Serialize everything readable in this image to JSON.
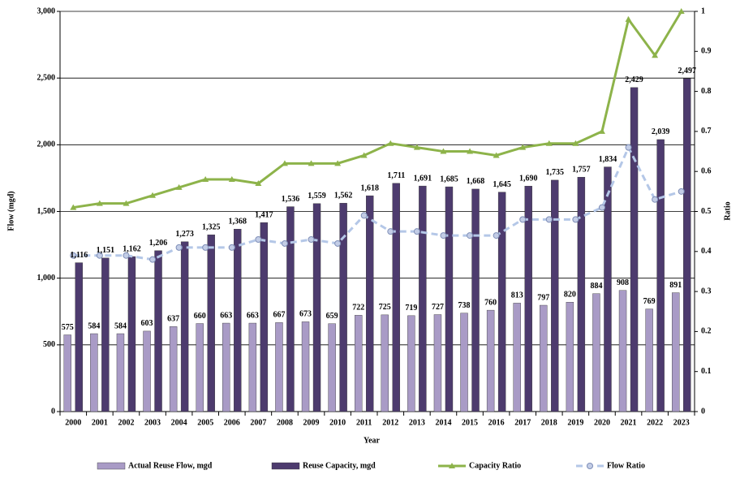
{
  "chart_data": {
    "type": "bar-line",
    "x_label": "Year",
    "y_label": "Flow (mgd)",
    "y2_label": "Ratio",
    "categories": [
      "2000",
      "2001",
      "2002",
      "2003",
      "2004",
      "2005",
      "2006",
      "2007",
      "2008",
      "2009",
      "2010",
      "2011",
      "2012",
      "2013",
      "2014",
      "2015",
      "2016",
      "2017",
      "2018",
      "2019",
      "2020",
      "2021",
      "2022",
      "2023"
    ],
    "ylim": [
      0,
      3000
    ],
    "yticks": [
      0,
      500,
      {
        "value": 1000,
        "label": "1,000"
      },
      {
        "value": 1500,
        "label": "1,500"
      },
      {
        "value": 2000,
        "label": "2,000"
      },
      {
        "value": 2500,
        "label": "2,500"
      },
      {
        "value": 3000,
        "label": "3,000"
      }
    ],
    "y2lim": [
      0,
      1
    ],
    "y2ticks": [
      0,
      0.1,
      0.2,
      0.3,
      0.4,
      0.5,
      0.6,
      0.7,
      0.8,
      0.9,
      1
    ],
    "grid": true,
    "legend": "bottom",
    "series": [
      {
        "name": "Actual Reuse Flow, mgd",
        "type": "bar",
        "color": "#a99bc6",
        "values": [
          575,
          584,
          584,
          603,
          637,
          660,
          663,
          663,
          667,
          673,
          659,
          722,
          725,
          719,
          727,
          738,
          760,
          813,
          797,
          820,
          884,
          908,
          769,
          891
        ]
      },
      {
        "name": "Reuse Capacity, mgd",
        "type": "bar",
        "color": "#4d3b6e",
        "values": [
          1116,
          1151,
          1162,
          1206,
          1273,
          1325,
          1368,
          1417,
          1536,
          1559,
          1562,
          1618,
          1711,
          1691,
          1685,
          1668,
          1645,
          1690,
          1735,
          1757,
          1834,
          2429,
          2039,
          2497
        ],
        "value_labels": [
          "1,116",
          "1,151",
          "1,162",
          "1,206",
          "1,273",
          "1,325",
          "1,368",
          "1,417",
          "1,536",
          "1,559",
          "1,562",
          "1,618",
          "1,711",
          "1,691",
          "1,685",
          "1,668",
          "1,645",
          "1,690",
          "1,735",
          "1,757",
          "1,834",
          "2,429",
          "2,039",
          "2,497"
        ]
      },
      {
        "name": "Capacity Ratio",
        "type": "line",
        "axis": "y2",
        "color": "#8db34a",
        "marker": "triangle",
        "dashed": false,
        "values": [
          0.51,
          0.52,
          0.52,
          0.54,
          0.56,
          0.58,
          0.58,
          0.57,
          0.62,
          0.62,
          0.62,
          0.64,
          0.67,
          0.66,
          0.65,
          0.65,
          0.64,
          0.66,
          0.67,
          0.67,
          0.7,
          0.98,
          0.89,
          1.0
        ]
      },
      {
        "name": "Flow Ratio",
        "type": "line",
        "axis": "y2",
        "color": "#b4c7e7",
        "marker": "circle",
        "dashed": true,
        "values": [
          0.39,
          0.39,
          0.39,
          0.38,
          0.41,
          0.41,
          0.41,
          0.43,
          0.42,
          0.43,
          0.42,
          0.49,
          0.45,
          0.45,
          0.44,
          0.44,
          0.44,
          0.48,
          0.48,
          0.48,
          0.51,
          0.66,
          0.53,
          0.55
        ]
      }
    ]
  }
}
